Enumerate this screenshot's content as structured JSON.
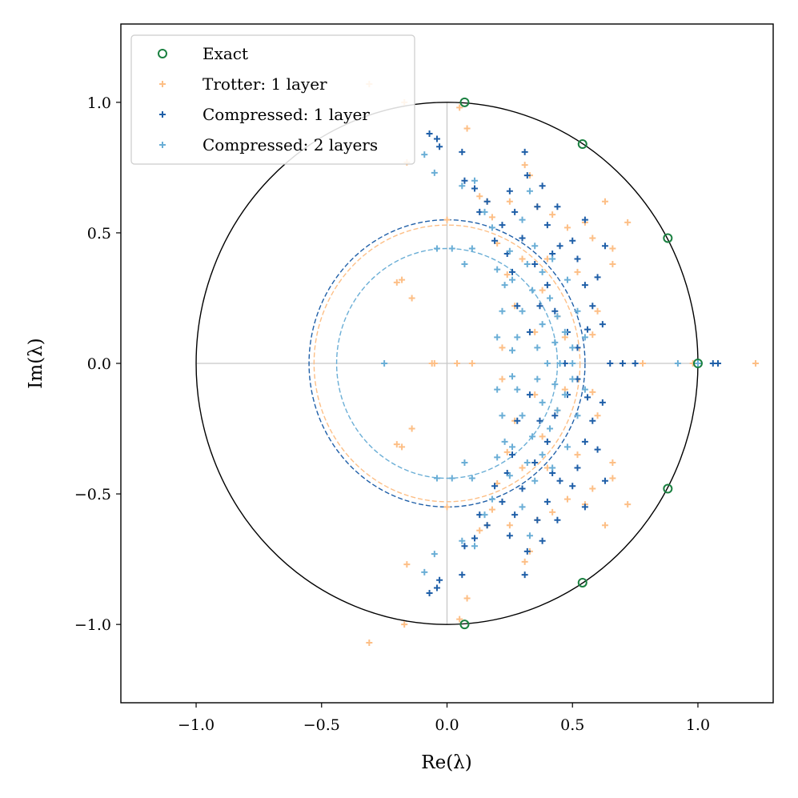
{
  "chart_data": {
    "type": "scatter",
    "xlabel": "Re(λ)",
    "ylabel": "Im(λ)",
    "xlim": [
      -1.3,
      1.3
    ],
    "ylim": [
      -1.3,
      1.3
    ],
    "xticks": [
      -1.0,
      -0.5,
      0.0,
      0.5,
      1.0
    ],
    "yticks": [
      -1.0,
      -0.5,
      0.0,
      0.5,
      1.0
    ],
    "xtick_labels": [
      "−1.0",
      "−0.5",
      "0.0",
      "0.5",
      "1.0"
    ],
    "ytick_labels": [
      "−1.0",
      "−0.5",
      "0.0",
      "0.5",
      "1.0"
    ],
    "legend_position": "upper-left",
    "unit_circle_color": "#000000",
    "crosshair_color": "#c8c8c8",
    "series": [
      {
        "name": "Exact",
        "marker": "open-circle",
        "color": "#1a8040",
        "points": [
          [
            0.07,
            1.0
          ],
          [
            0.54,
            0.84
          ],
          [
            0.88,
            0.48
          ],
          [
            1.0,
            0.0
          ],
          [
            0.88,
            -0.48
          ],
          [
            0.54,
            -0.84
          ],
          [
            0.07,
            -1.0
          ]
        ]
      },
      {
        "name": "Trotter: 1 layer",
        "marker": "plus",
        "color": "#fdbf86",
        "points": [
          [
            -0.31,
            1.07
          ],
          [
            -0.31,
            -1.07
          ],
          [
            -0.17,
            1.0
          ],
          [
            -0.17,
            -1.0
          ],
          [
            -0.16,
            0.77
          ],
          [
            -0.16,
            -0.77
          ],
          [
            -0.2,
            0.31
          ],
          [
            -0.2,
            -0.31
          ],
          [
            -0.14,
            0.25
          ],
          [
            -0.14,
            -0.25
          ],
          [
            -0.18,
            0.32
          ],
          [
            -0.18,
            -0.32
          ],
          [
            -0.06,
            0.0
          ],
          [
            -0.05,
            0.0
          ],
          [
            0.04,
            0.0
          ],
          [
            0.1,
            0.0
          ],
          [
            0.0,
            0.55
          ],
          [
            0.0,
            -0.55
          ],
          [
            0.08,
            0.9
          ],
          [
            0.08,
            -0.9
          ],
          [
            0.05,
            0.98
          ],
          [
            0.05,
            -0.98
          ],
          [
            0.13,
            0.64
          ],
          [
            0.13,
            -0.64
          ],
          [
            0.2,
            0.46
          ],
          [
            0.2,
            -0.46
          ],
          [
            0.25,
            0.62
          ],
          [
            0.25,
            -0.62
          ],
          [
            0.31,
            0.76
          ],
          [
            0.31,
            -0.76
          ],
          [
            0.33,
            0.72
          ],
          [
            0.33,
            -0.72
          ],
          [
            0.36,
            0.6
          ],
          [
            0.36,
            -0.6
          ],
          [
            0.42,
            0.57
          ],
          [
            0.42,
            -0.57
          ],
          [
            0.48,
            0.52
          ],
          [
            0.48,
            -0.52
          ],
          [
            0.52,
            0.35
          ],
          [
            0.52,
            -0.35
          ],
          [
            0.55,
            0.54
          ],
          [
            0.55,
            -0.54
          ],
          [
            0.58,
            0.48
          ],
          [
            0.58,
            -0.48
          ],
          [
            0.63,
            0.62
          ],
          [
            0.63,
            -0.62
          ],
          [
            0.66,
            0.38
          ],
          [
            0.66,
            -0.38
          ],
          [
            0.72,
            0.54
          ],
          [
            0.72,
            -0.54
          ],
          [
            0.66,
            0.44
          ],
          [
            0.66,
            -0.44
          ],
          [
            0.6,
            0.2
          ],
          [
            0.6,
            -0.2
          ],
          [
            0.7,
            0.0
          ],
          [
            0.78,
            0.0
          ],
          [
            0.98,
            0.0
          ],
          [
            1.23,
            0.0
          ],
          [
            0.44,
            0.18
          ],
          [
            0.44,
            -0.18
          ],
          [
            0.38,
            0.28
          ],
          [
            0.38,
            -0.28
          ],
          [
            0.3,
            0.4
          ],
          [
            0.3,
            -0.4
          ],
          [
            0.22,
            0.06
          ],
          [
            0.22,
            -0.06
          ],
          [
            0.35,
            0.12
          ],
          [
            0.35,
            -0.12
          ],
          [
            0.27,
            0.22
          ],
          [
            0.27,
            -0.22
          ],
          [
            0.4,
            0.4
          ],
          [
            0.4,
            -0.4
          ],
          [
            0.47,
            0.1
          ],
          [
            0.47,
            -0.1
          ],
          [
            0.18,
            0.56
          ],
          [
            0.18,
            -0.56
          ],
          [
            0.24,
            0.34
          ],
          [
            0.24,
            -0.34
          ],
          [
            0.16,
            0.62
          ],
          [
            0.16,
            -0.62
          ],
          [
            0.58,
            0.11
          ],
          [
            0.58,
            -0.11
          ]
        ]
      },
      {
        "name": "Compressed: 1 layer",
        "marker": "plus",
        "color": "#1f5fa8",
        "points": [
          [
            -0.07,
            0.88
          ],
          [
            -0.07,
            -0.88
          ],
          [
            -0.04,
            0.86
          ],
          [
            -0.04,
            -0.86
          ],
          [
            -0.03,
            0.83
          ],
          [
            -0.03,
            -0.83
          ],
          [
            0.06,
            0.81
          ],
          [
            0.06,
            -0.81
          ],
          [
            0.07,
            0.7
          ],
          [
            0.07,
            -0.7
          ],
          [
            0.13,
            0.58
          ],
          [
            0.13,
            -0.58
          ],
          [
            0.11,
            0.67
          ],
          [
            0.11,
            -0.67
          ],
          [
            0.19,
            0.47
          ],
          [
            0.19,
            -0.47
          ],
          [
            0.22,
            0.53
          ],
          [
            0.22,
            -0.53
          ],
          [
            0.25,
            0.66
          ],
          [
            0.25,
            -0.66
          ],
          [
            0.31,
            0.81
          ],
          [
            0.31,
            -0.81
          ],
          [
            0.32,
            0.72
          ],
          [
            0.32,
            -0.72
          ],
          [
            0.36,
            0.6
          ],
          [
            0.36,
            -0.6
          ],
          [
            0.38,
            0.68
          ],
          [
            0.38,
            -0.68
          ],
          [
            0.4,
            0.53
          ],
          [
            0.4,
            -0.53
          ],
          [
            0.44,
            0.6
          ],
          [
            0.44,
            -0.6
          ],
          [
            0.45,
            0.45
          ],
          [
            0.45,
            -0.45
          ],
          [
            0.5,
            0.47
          ],
          [
            0.5,
            -0.47
          ],
          [
            0.52,
            0.4
          ],
          [
            0.52,
            -0.4
          ],
          [
            0.55,
            0.3
          ],
          [
            0.55,
            -0.3
          ],
          [
            0.58,
            0.22
          ],
          [
            0.58,
            -0.22
          ],
          [
            0.62,
            0.15
          ],
          [
            0.62,
            -0.15
          ],
          [
            0.63,
            0.45
          ],
          [
            0.63,
            -0.45
          ],
          [
            0.55,
            0.55
          ],
          [
            0.55,
            -0.55
          ],
          [
            0.65,
            0.0
          ],
          [
            0.7,
            0.0
          ],
          [
            0.75,
            0.0
          ],
          [
            1.06,
            0.0
          ],
          [
            1.08,
            0.0
          ],
          [
            0.47,
            0.0
          ],
          [
            0.4,
            0.3
          ],
          [
            0.4,
            -0.3
          ],
          [
            0.35,
            0.38
          ],
          [
            0.35,
            -0.38
          ],
          [
            0.28,
            0.22
          ],
          [
            0.28,
            -0.22
          ],
          [
            0.3,
            0.48
          ],
          [
            0.3,
            -0.48
          ],
          [
            0.26,
            0.35
          ],
          [
            0.26,
            -0.35
          ],
          [
            0.33,
            0.12
          ],
          [
            0.33,
            -0.12
          ],
          [
            0.43,
            0.2
          ],
          [
            0.43,
            -0.2
          ],
          [
            0.48,
            0.12
          ],
          [
            0.48,
            -0.12
          ],
          [
            0.52,
            0.06
          ],
          [
            0.52,
            -0.06
          ],
          [
            0.37,
            0.22
          ],
          [
            0.37,
            -0.22
          ],
          [
            0.24,
            0.42
          ],
          [
            0.24,
            -0.42
          ],
          [
            0.42,
            0.42
          ],
          [
            0.42,
            -0.42
          ],
          [
            0.16,
            0.62
          ],
          [
            0.16,
            -0.62
          ],
          [
            0.27,
            0.58
          ],
          [
            0.27,
            -0.58
          ],
          [
            0.6,
            0.33
          ],
          [
            0.6,
            -0.33
          ],
          [
            0.56,
            0.13
          ],
          [
            0.56,
            -0.13
          ]
        ]
      },
      {
        "name": "Compressed: 2 layers",
        "marker": "plus",
        "color": "#6aaed6",
        "points": [
          [
            -0.25,
            0.0
          ],
          [
            -0.09,
            0.8
          ],
          [
            -0.09,
            -0.8
          ],
          [
            -0.05,
            0.73
          ],
          [
            -0.05,
            -0.73
          ],
          [
            -0.04,
            0.44
          ],
          [
            -0.04,
            -0.44
          ],
          [
            0.02,
            0.44
          ],
          [
            0.02,
            -0.44
          ],
          [
            0.07,
            0.38
          ],
          [
            0.07,
            -0.38
          ],
          [
            0.1,
            0.44
          ],
          [
            0.1,
            -0.44
          ],
          [
            0.06,
            0.68
          ],
          [
            0.06,
            -0.68
          ],
          [
            0.11,
            0.7
          ],
          [
            0.11,
            -0.7
          ],
          [
            0.15,
            0.58
          ],
          [
            0.15,
            -0.58
          ],
          [
            0.18,
            0.52
          ],
          [
            0.18,
            -0.52
          ],
          [
            0.2,
            0.36
          ],
          [
            0.2,
            -0.36
          ],
          [
            0.23,
            0.3
          ],
          [
            0.23,
            -0.3
          ],
          [
            0.25,
            0.43
          ],
          [
            0.25,
            -0.43
          ],
          [
            0.3,
            0.55
          ],
          [
            0.3,
            -0.55
          ],
          [
            0.33,
            0.66
          ],
          [
            0.33,
            -0.66
          ],
          [
            0.35,
            0.45
          ],
          [
            0.35,
            -0.45
          ],
          [
            0.38,
            0.35
          ],
          [
            0.38,
            -0.35
          ],
          [
            0.41,
            0.25
          ],
          [
            0.41,
            -0.25
          ],
          [
            0.44,
            0.18
          ],
          [
            0.44,
            -0.18
          ],
          [
            0.47,
            0.12
          ],
          [
            0.47,
            -0.12
          ],
          [
            0.52,
            0.2
          ],
          [
            0.52,
            -0.2
          ],
          [
            0.55,
            0.1
          ],
          [
            0.55,
            -0.1
          ],
          [
            0.4,
            0.0
          ],
          [
            0.45,
            0.0
          ],
          [
            0.5,
            0.0
          ],
          [
            0.92,
            0.0
          ],
          [
            1.0,
            0.0
          ],
          [
            0.3,
            0.2
          ],
          [
            0.3,
            -0.2
          ],
          [
            0.28,
            0.1
          ],
          [
            0.28,
            -0.1
          ],
          [
            0.34,
            0.28
          ],
          [
            0.34,
            -0.28
          ],
          [
            0.26,
            0.32
          ],
          [
            0.26,
            -0.32
          ],
          [
            0.36,
            0.06
          ],
          [
            0.36,
            -0.06
          ],
          [
            0.42,
            0.4
          ],
          [
            0.42,
            -0.4
          ],
          [
            0.48,
            0.32
          ],
          [
            0.48,
            -0.32
          ],
          [
            0.38,
            0.15
          ],
          [
            0.38,
            -0.15
          ],
          [
            0.22,
            0.2
          ],
          [
            0.22,
            -0.2
          ],
          [
            0.32,
            0.38
          ],
          [
            0.32,
            -0.38
          ],
          [
            0.26,
            0.05
          ],
          [
            0.26,
            -0.05
          ],
          [
            0.5,
            0.06
          ],
          [
            0.5,
            -0.06
          ],
          [
            0.2,
            0.1
          ],
          [
            0.2,
            -0.1
          ],
          [
            0.43,
            0.08
          ],
          [
            0.43,
            -0.08
          ]
        ]
      }
    ],
    "reference_circles": [
      {
        "name": "Trotter: 1 layer",
        "radius": 0.53,
        "color": "#fdbf86"
      },
      {
        "name": "Compressed: 1 layer",
        "radius": 0.55,
        "color": "#1f5fa8"
      },
      {
        "name": "Compressed: 2 layers",
        "radius": 0.44,
        "color": "#6aaed6"
      }
    ]
  }
}
